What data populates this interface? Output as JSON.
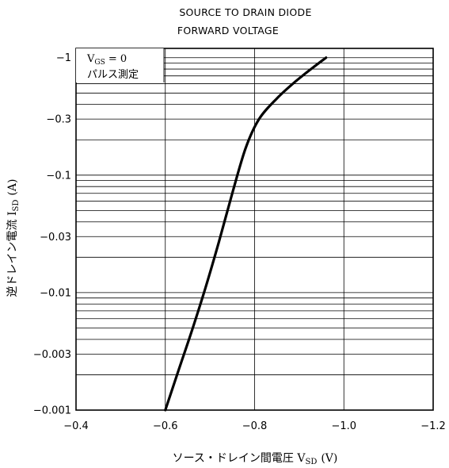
{
  "chart_data": {
    "type": "line",
    "title_lines": [
      "SOURCE TO DRAIN DIODE",
      "FORWARD VOLTAGE"
    ],
    "xlabel": "ソース・ドレイン間電圧 V",
    "xlabel_sub": "SD",
    "xlabel_unit": "(V)",
    "ylabel": "逆ドレイン電流 I",
    "ylabel_sub": "SD",
    "ylabel_unit": "(A)",
    "xlim": [
      -0.4,
      -1.2
    ],
    "ylim": [
      -0.001,
      -1.2
    ],
    "y_scale": "log",
    "x_ticks": [
      -0.4,
      -0.6,
      -0.8,
      -1.0,
      -1.2
    ],
    "x_tick_labels": [
      "−0.4",
      "−0.6",
      "−0.8",
      "−1.0",
      "−1.2"
    ],
    "y_ticks": [
      -0.001,
      -0.003,
      -0.01,
      -0.03,
      -0.1,
      -0.3,
      -1
    ],
    "y_tick_labels": [
      "−0.001",
      "−0.003",
      "−0.01",
      "−0.03",
      "−0.1",
      "−0.3",
      "−1"
    ],
    "grid": true,
    "annotations": {
      "condition_line1_main": "V",
      "condition_line1_sub": "GS",
      "condition_line1_rest": " = 0",
      "condition_line2": "パルス測定"
    },
    "series": [
      {
        "x": [
          -0.6,
          -0.63,
          -0.66,
          -0.69,
          -0.72,
          -0.75,
          -0.78,
          -0.81,
          -0.85,
          -0.89,
          -0.93,
          -0.96
        ],
        "y": [
          -0.001,
          -0.0022,
          -0.0048,
          -0.011,
          -0.027,
          -0.07,
          -0.17,
          -0.3,
          -0.45,
          -0.62,
          -0.82,
          -1.0
        ]
      }
    ]
  }
}
